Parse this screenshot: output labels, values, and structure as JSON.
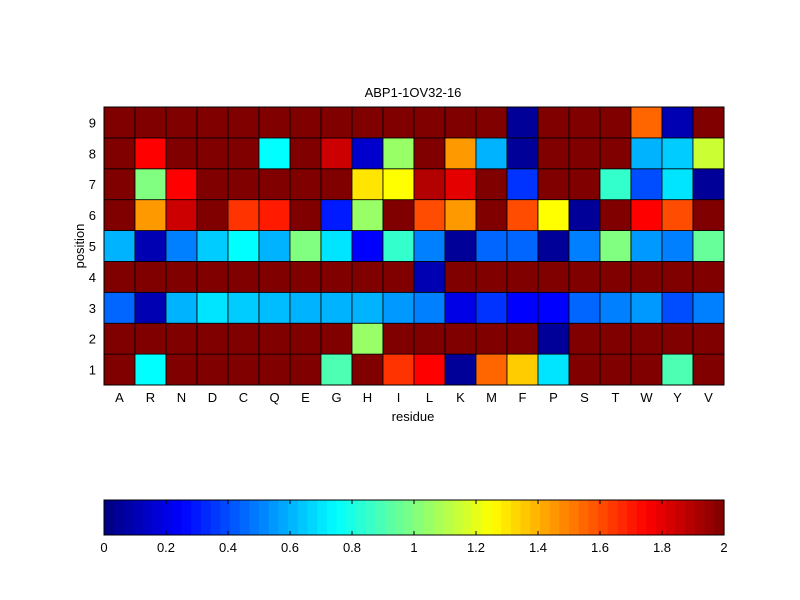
{
  "chart_data": {
    "type": "heatmap",
    "title": "ABP1-1OV32-16",
    "xlabel": "residue",
    "ylabel": "position",
    "x_categories": [
      "A",
      "R",
      "N",
      "D",
      "C",
      "Q",
      "E",
      "G",
      "H",
      "I",
      "L",
      "K",
      "M",
      "F",
      "P",
      "S",
      "T",
      "W",
      "Y",
      "V"
    ],
    "y_categories": [
      "1",
      "2",
      "3",
      "4",
      "5",
      "6",
      "7",
      "8",
      "9"
    ],
    "values": [
      [
        2.0,
        0.75,
        2.0,
        2.0,
        2.0,
        2.0,
        2.0,
        0.9,
        2.0,
        1.65,
        1.75,
        0.05,
        1.55,
        1.35,
        0.7,
        2.0,
        2.0,
        2.0,
        0.9,
        2.0
      ],
      [
        2.0,
        2.0,
        2.0,
        2.0,
        2.0,
        2.0,
        2.0,
        2.0,
        1.05,
        2.0,
        2.0,
        2.0,
        2.0,
        2.0,
        0.05,
        2.0,
        2.0,
        2.0,
        2.0,
        2.0
      ],
      [
        0.45,
        0.1,
        0.6,
        0.7,
        0.65,
        0.62,
        0.6,
        0.6,
        0.6,
        0.55,
        0.5,
        0.2,
        0.35,
        0.25,
        0.25,
        0.45,
        0.5,
        0.55,
        0.4,
        0.5
      ],
      [
        2.0,
        2.0,
        2.0,
        2.0,
        2.0,
        2.0,
        2.0,
        2.0,
        2.0,
        2.0,
        0.1,
        2.0,
        2.0,
        2.0,
        2.0,
        2.0,
        2.0,
        2.0,
        2.0,
        2.0
      ],
      [
        0.6,
        0.1,
        0.5,
        0.65,
        0.75,
        0.6,
        1.0,
        0.7,
        0.25,
        0.85,
        0.5,
        0.05,
        0.45,
        0.45,
        0.05,
        0.5,
        1.0,
        0.55,
        0.5,
        0.95
      ],
      [
        2.0,
        1.45,
        1.85,
        2.0,
        1.65,
        1.7,
        2.0,
        0.3,
        1.05,
        2.0,
        1.6,
        1.45,
        2.0,
        1.6,
        1.25,
        0.05,
        2.0,
        1.75,
        1.6,
        2.0
      ],
      [
        2.0,
        1.0,
        1.75,
        2.0,
        2.0,
        2.0,
        2.0,
        2.0,
        1.3,
        1.25,
        1.9,
        1.8,
        2.0,
        0.35,
        2.0,
        2.0,
        0.85,
        0.4,
        0.7,
        0.05
      ],
      [
        2.0,
        1.75,
        2.0,
        2.0,
        2.0,
        0.75,
        2.0,
        1.85,
        0.15,
        1.05,
        2.0,
        1.45,
        0.6,
        0.05,
        2.0,
        2.0,
        2.0,
        0.6,
        0.65,
        1.15
      ],
      [
        2.0,
        2.0,
        2.0,
        2.0,
        2.0,
        2.0,
        2.0,
        2.0,
        2.0,
        2.0,
        2.0,
        2.0,
        2.0,
        0.05,
        2.0,
        2.0,
        2.0,
        1.55,
        0.1,
        2.0
      ]
    ],
    "colorscale": "jet",
    "clim": [
      0,
      2
    ],
    "colorbar": {
      "orientation": "horizontal",
      "placement": "bottom",
      "tick_values": [
        0,
        0.2,
        0.4,
        0.6,
        0.8,
        1,
        1.2,
        1.4,
        1.6,
        1.8,
        2
      ],
      "tick_labels": [
        "0",
        "0.2",
        "0.4",
        "0.6",
        "0.8",
        "1",
        "1.2",
        "1.4",
        "1.6",
        "1.8",
        "2"
      ]
    },
    "grid": false
  }
}
